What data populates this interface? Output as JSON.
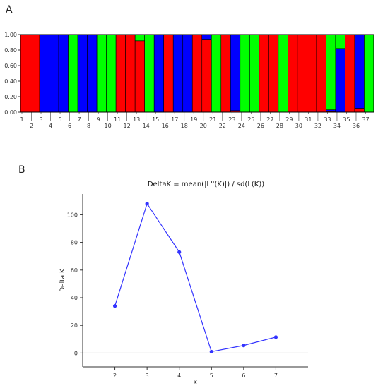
{
  "panels": {
    "a": "A",
    "b": "B"
  },
  "chart_data": [
    {
      "type": "bar",
      "subtype": "stacked-proportion",
      "ylim": [
        0,
        1
      ],
      "yticks": [
        "0.00",
        "0.20",
        "0.40",
        "0.60",
        "0.80",
        "1.00"
      ],
      "colors": {
        "red": "#ff0000",
        "blue": "#0000ff",
        "green": "#00ff00"
      },
      "categories": [
        "1",
        "2",
        "3",
        "4",
        "5",
        "6",
        "7",
        "8",
        "9",
        "10",
        "11",
        "12",
        "13",
        "14",
        "15",
        "16",
        "17",
        "18",
        "19",
        "20",
        "21",
        "22",
        "23",
        "24",
        "25",
        "26",
        "27",
        "28",
        "29",
        "30",
        "31",
        "32",
        "33",
        "34",
        "35",
        "36",
        "37"
      ],
      "series": [
        {
          "color": "red",
          "values": [
            1,
            1,
            0,
            0,
            0,
            0,
            0,
            0,
            0,
            0,
            1,
            1,
            0.92,
            0,
            0,
            1,
            0,
            0,
            1,
            0.94,
            0,
            1,
            0.02,
            0,
            0,
            1,
            1,
            0,
            1,
            1,
            1,
            1,
            0.01,
            0,
            1,
            0.05,
            0
          ]
        },
        {
          "color": "blue",
          "values": [
            0,
            0,
            1,
            1,
            1,
            0,
            1,
            1,
            0,
            0,
            0,
            0,
            0,
            0,
            1,
            0,
            1,
            1,
            0,
            0.06,
            0,
            0,
            0.98,
            0,
            0,
            0,
            0,
            0,
            0,
            0,
            0,
            0,
            0.02,
            0.82,
            0,
            0.95,
            0
          ]
        },
        {
          "color": "green",
          "values": [
            0,
            0,
            0,
            0,
            0,
            1,
            0,
            0,
            1,
            1,
            0,
            0,
            0.08,
            1,
            0,
            0,
            0,
            0,
            0,
            0,
            1,
            0,
            0,
            1,
            1,
            0,
            0,
            1,
            0,
            0,
            0,
            0,
            0.97,
            0.18,
            0,
            0,
            1
          ]
        }
      ]
    },
    {
      "type": "line",
      "title": "DeltaK = mean(|L''(K)|) / sd(L(K))",
      "xlabel": "K",
      "ylabel": "Delta K",
      "x": [
        2,
        3,
        4,
        5,
        6,
        7
      ],
      "y": [
        34,
        108,
        73,
        1,
        5.5,
        11.5
      ],
      "xlim": [
        1,
        8
      ],
      "ylim": [
        -10,
        115
      ],
      "yticks": [
        0,
        20,
        40,
        60,
        80,
        100
      ],
      "xticks": [
        2,
        3,
        4,
        5,
        6,
        7
      ],
      "color": "#3333ff",
      "zero_line_color": "#c0c0c0"
    }
  ]
}
